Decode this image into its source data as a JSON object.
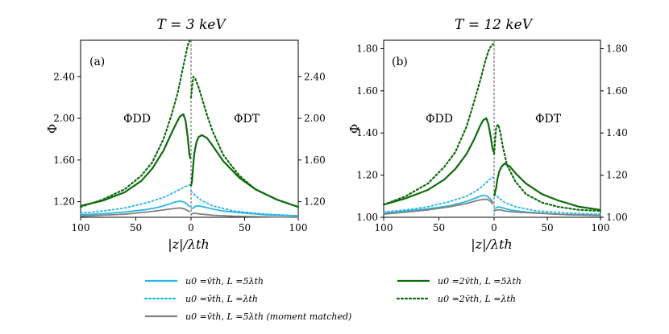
{
  "chart_data": [
    {
      "type": "line",
      "panel_label": "(a)",
      "title": "T = 3 keV",
      "ylabel": "Φ",
      "xlabel": "|z|/λth",
      "xlim_left": [
        100,
        0
      ],
      "xlim_right": [
        0,
        100
      ],
      "x_ticks": [
        "100",
        "50",
        "0",
        "50",
        "100"
      ],
      "ylim": [
        1.05,
        2.75
      ],
      "y_ticks": [
        1.2,
        1.6,
        2.0,
        2.4
      ],
      "y_tick_labels": [
        "1.20",
        "1.60",
        "2.00",
        "2.40"
      ],
      "left_annotation": "ΦDD",
      "right_annotation": "ΦDT",
      "series": [
        {
          "name": "u0=v̄th, L=5λth",
          "color": "#29b6e8",
          "style": "solid",
          "left": {
            "z": [
              100,
              80,
              60,
              40,
              30,
              20,
              15,
              10,
              6,
              3,
              1
            ],
            "phi": [
              1.075,
              1.085,
              1.1,
              1.125,
              1.145,
              1.175,
              1.195,
              1.205,
              1.195,
              1.17,
              1.15
            ]
          },
          "right": {
            "z": [
              0,
              2,
              4,
              6,
              8,
              12,
              20,
              30,
              50,
              70,
              100
            ],
            "phi": [
              1.13,
              1.14,
              1.155,
              1.16,
              1.158,
              1.15,
              1.13,
              1.11,
              1.09,
              1.075,
              1.065
            ]
          }
        },
        {
          "name": "u0=v̄th, L=λth",
          "color": "#29b6e8",
          "style": "dotted",
          "left": {
            "z": [
              100,
              80,
              60,
              40,
              25,
              15,
              8,
              4,
              1
            ],
            "phi": [
              1.09,
              1.11,
              1.14,
              1.19,
              1.24,
              1.29,
              1.33,
              1.35,
              1.36
            ]
          },
          "right": {
            "z": [
              0,
              2,
              5,
              10,
              20,
              40,
              70,
              100
            ],
            "phi": [
              1.3,
              1.28,
              1.25,
              1.21,
              1.16,
              1.11,
              1.08,
              1.065
            ]
          }
        },
        {
          "name": "u0=v̄th, L=5λth (moment matched)",
          "color": "#808080",
          "style": "solid",
          "left": {
            "z": [
              100,
              80,
              60,
              40,
              25,
              15,
              10,
              6,
              3,
              1
            ],
            "phi": [
              1.06,
              1.07,
              1.08,
              1.1,
              1.12,
              1.135,
              1.14,
              1.13,
              1.115,
              1.1
            ]
          },
          "right": {
            "z": [
              0,
              3,
              6,
              10,
              20,
              40,
              70,
              100
            ],
            "phi": [
              1.08,
              1.09,
              1.085,
              1.08,
              1.07,
              1.06,
              1.055,
              1.05
            ]
          }
        },
        {
          "name": "u0=2v̄th, L=5λth",
          "color": "#0d6b0d",
          "style": "solid",
          "left": {
            "z": [
              100,
              80,
              60,
              45,
              35,
              25,
              18,
              13,
              10,
              7,
              5,
              3,
              1.5,
              0.5
            ],
            "phi": [
              1.16,
              1.21,
              1.29,
              1.4,
              1.52,
              1.69,
              1.85,
              1.96,
              2.02,
              2.04,
              1.98,
              1.82,
              1.66,
              1.61
            ]
          },
          "right": {
            "z": [
              0,
              1,
              2,
              3,
              5,
              7,
              10,
              15,
              20,
              30,
              45,
              60,
              80,
              100
            ],
            "phi": [
              1.35,
              1.4,
              1.55,
              1.66,
              1.77,
              1.82,
              1.84,
              1.81,
              1.74,
              1.59,
              1.43,
              1.32,
              1.22,
              1.15
            ]
          }
        },
        {
          "name": "u0=2v̄th, L=λth",
          "color": "#0d6b0d",
          "style": "dotted",
          "left": {
            "z": [
              100,
              80,
              60,
              45,
              35,
              25,
              18,
              12,
              8,
              5,
              3,
              1.5,
              0.5
            ],
            "phi": [
              1.15,
              1.22,
              1.32,
              1.45,
              1.58,
              1.8,
              2.02,
              2.25,
              2.45,
              2.6,
              2.7,
              2.74,
              2.75
            ]
          },
          "right": {
            "z": [
              0,
              2,
              4,
              7,
              10,
              15,
              20,
              30,
              45,
              60,
              80,
              100
            ],
            "phi": [
              2.2,
              2.4,
              2.38,
              2.3,
              2.2,
              2.03,
              1.88,
              1.65,
              1.45,
              1.32,
              1.22,
              1.15
            ]
          }
        }
      ]
    },
    {
      "type": "line",
      "panel_label": "(b)",
      "title": "T = 12 keV",
      "ylabel": "Φ",
      "xlabel": "|z|/λth",
      "xlim_left": [
        100,
        0
      ],
      "xlim_right": [
        0,
        100
      ],
      "x_ticks": [
        "100",
        "50",
        "0",
        "50",
        "100"
      ],
      "ylim": [
        1.0,
        1.84
      ],
      "y_ticks": [
        1.0,
        1.2,
        1.4,
        1.6,
        1.8
      ],
      "y_tick_labels": [
        "1.00",
        "1.20",
        "1.40",
        "1.60",
        "1.80"
      ],
      "left_annotation": "ΦDD",
      "right_annotation": "ΦDT",
      "series": [
        {
          "name": "u0=v̄th, L=5λth",
          "color": "#29b6e8",
          "style": "solid",
          "left": {
            "z": [
              100,
              80,
              60,
              40,
              25,
              15,
              10,
              6,
              3,
              1
            ],
            "phi": [
              1.02,
              1.03,
              1.04,
              1.055,
              1.075,
              1.095,
              1.105,
              1.1,
              1.085,
              1.07
            ]
          },
          "right": {
            "z": [
              0,
              2,
              4,
              8,
              15,
              30,
              60,
              100
            ],
            "phi": [
              1.04,
              1.045,
              1.05,
              1.045,
              1.035,
              1.025,
              1.015,
              1.01
            ]
          }
        },
        {
          "name": "u0=v̄th, L=λth",
          "color": "#29b6e8",
          "style": "dotted",
          "left": {
            "z": [
              100,
              80,
              60,
              40,
              25,
              15,
              8,
              4,
              1
            ],
            "phi": [
              1.025,
              1.035,
              1.05,
              1.075,
              1.1,
              1.13,
              1.16,
              1.18,
              1.19
            ]
          },
          "right": {
            "z": [
              0,
              2,
              5,
              10,
              20,
              40,
              70,
              100
            ],
            "phi": [
              1.11,
              1.105,
              1.09,
              1.07,
              1.05,
              1.03,
              1.02,
              1.015
            ]
          }
        },
        {
          "name": "u0=v̄th, L=5λth (moment matched)",
          "color": "#808080",
          "style": "solid",
          "left": {
            "z": [
              100,
              80,
              60,
              40,
              25,
              15,
              10,
              6,
              3,
              1
            ],
            "phi": [
              1.015,
              1.025,
              1.035,
              1.05,
              1.065,
              1.08,
              1.085,
              1.085,
              1.075,
              1.06
            ]
          },
          "right": {
            "z": [
              0,
              3,
              6,
              10,
              20,
              40,
              70,
              100
            ],
            "phi": [
              1.03,
              1.035,
              1.035,
              1.03,
              1.025,
              1.02,
              1.012,
              1.008
            ]
          }
        },
        {
          "name": "u0=2v̄th, L=5λth",
          "color": "#0d6b0d",
          "style": "solid",
          "left": {
            "z": [
              100,
              80,
              60,
              45,
              35,
              25,
              18,
              13,
              10,
              7,
              5,
              3,
              1.5,
              0.5
            ],
            "phi": [
              1.06,
              1.09,
              1.13,
              1.18,
              1.23,
              1.3,
              1.37,
              1.43,
              1.46,
              1.47,
              1.44,
              1.38,
              1.33,
              1.31
            ]
          },
          "right": {
            "z": [
              0,
              2,
              3,
              5,
              7,
              10,
              15,
              20,
              30,
              45,
              60,
              80,
              100
            ],
            "phi": [
              1.1,
              1.14,
              1.18,
              1.22,
              1.24,
              1.255,
              1.24,
              1.21,
              1.16,
              1.11,
              1.08,
              1.05,
              1.035
            ]
          }
        },
        {
          "name": "u0=2v̄th, L=λth",
          "color": "#0d6b0d",
          "style": "dotted",
          "left": {
            "z": [
              100,
              80,
              60,
              45,
              35,
              25,
              18,
              12,
              8,
              5,
              3,
              1.5,
              0.5
            ],
            "phi": [
              1.06,
              1.1,
              1.16,
              1.24,
              1.31,
              1.43,
              1.55,
              1.66,
              1.74,
              1.79,
              1.81,
              1.82,
              1.82
            ]
          },
          "right": {
            "z": [
              0,
              2,
              4,
              6,
              8,
              12,
              20,
              30,
              45,
              60,
              80,
              100
            ],
            "phi": [
              1.3,
              1.43,
              1.44,
              1.4,
              1.34,
              1.25,
              1.17,
              1.11,
              1.07,
              1.05,
              1.035,
              1.03
            ]
          }
        }
      ]
    }
  ],
  "legend": [
    {
      "label": "u0 =v̄th, L =5λth",
      "color": "#29b6e8",
      "style": "solid"
    },
    {
      "label": "u0 =v̄th, L =λth",
      "color": "#29b6e8",
      "style": "dotted"
    },
    {
      "label": "u0 =v̄th, L =5λth (moment matched)",
      "color": "#808080",
      "style": "solid"
    },
    {
      "label": "u0 =2v̄th, L =5λth",
      "color": "#0d6b0d",
      "style": "solid"
    },
    {
      "label": "u0 =2v̄th, L =λth",
      "color": "#0d6b0d",
      "style": "dotted"
    }
  ]
}
